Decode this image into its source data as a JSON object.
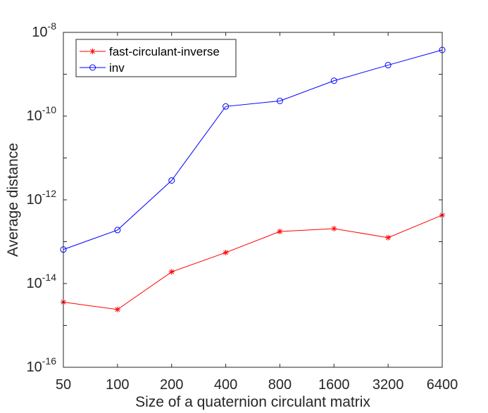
{
  "chart_data": {
    "type": "line",
    "title": "",
    "xlabel": "Size of a quaternion circulant matrix",
    "ylabel": "Average distance",
    "x_scale": "log2",
    "y_scale": "log10",
    "xlim": [
      50,
      6400
    ],
    "ylim": [
      1e-16,
      1e-08
    ],
    "categories": [
      "50",
      "100",
      "200",
      "400",
      "800",
      "1600",
      "3200",
      "6400"
    ],
    "x": [
      50,
      100,
      200,
      400,
      800,
      1600,
      3200,
      6400
    ],
    "y_ticks": [
      {
        "value": 1e-16,
        "base": "10",
        "exp": "-16"
      },
      {
        "value": 1e-14,
        "base": "10",
        "exp": "-14"
      },
      {
        "value": 1e-12,
        "base": "10",
        "exp": "-12"
      },
      {
        "value": 1e-10,
        "base": "10",
        "exp": "-10"
      },
      {
        "value": 1e-08,
        "base": "10",
        "exp": "-8"
      }
    ],
    "legend_position": "top-left",
    "series": [
      {
        "name": "fast-circulant-inverse",
        "color": "#ff0000",
        "marker": "asterisk",
        "values": [
          3.6e-15,
          2.4e-15,
          1.9e-14,
          5.5e-14,
          1.75e-13,
          2.05e-13,
          1.25e-13,
          4.3e-13
        ]
      },
      {
        "name": "inv",
        "color": "#0000ff",
        "marker": "circle",
        "values": [
          6.5e-14,
          1.9e-13,
          2.9e-12,
          1.7e-10,
          2.3e-10,
          7e-10,
          1.65e-09,
          3.8e-09
        ]
      }
    ]
  }
}
